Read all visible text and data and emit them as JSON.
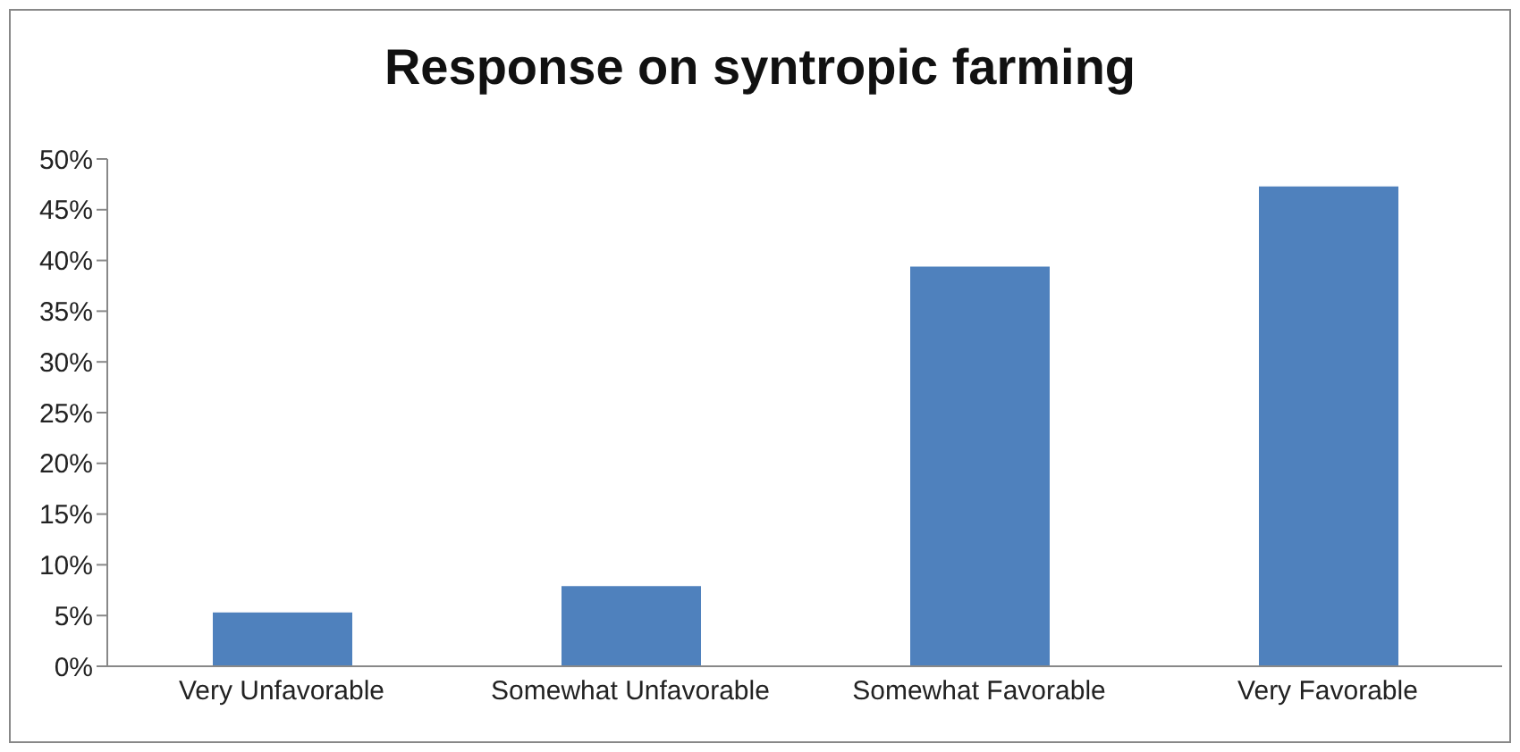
{
  "chart_data": {
    "type": "bar",
    "title": "Response on syntropic farming",
    "categories": [
      "Very Unfavorable",
      "Somewhat Unfavorable",
      "Somewhat Favorable",
      "Very Favorable"
    ],
    "values": [
      5.3,
      7.9,
      39.4,
      47.3
    ],
    "color": "#4f81bd",
    "ylim": [
      0,
      50
    ],
    "yticks": [
      {
        "value": 0,
        "label": "0%"
      },
      {
        "value": 5,
        "label": "5%"
      },
      {
        "value": 10,
        "label": "10%"
      },
      {
        "value": 15,
        "label": "15%"
      },
      {
        "value": 20,
        "label": "20%"
      },
      {
        "value": 25,
        "label": "25%"
      },
      {
        "value": 30,
        "label": "30%"
      },
      {
        "value": 35,
        "label": "35%"
      },
      {
        "value": 40,
        "label": "40%"
      },
      {
        "value": 45,
        "label": "45%"
      },
      {
        "value": 50,
        "label": "50%"
      }
    ],
    "grid": false,
    "legend": false
  }
}
